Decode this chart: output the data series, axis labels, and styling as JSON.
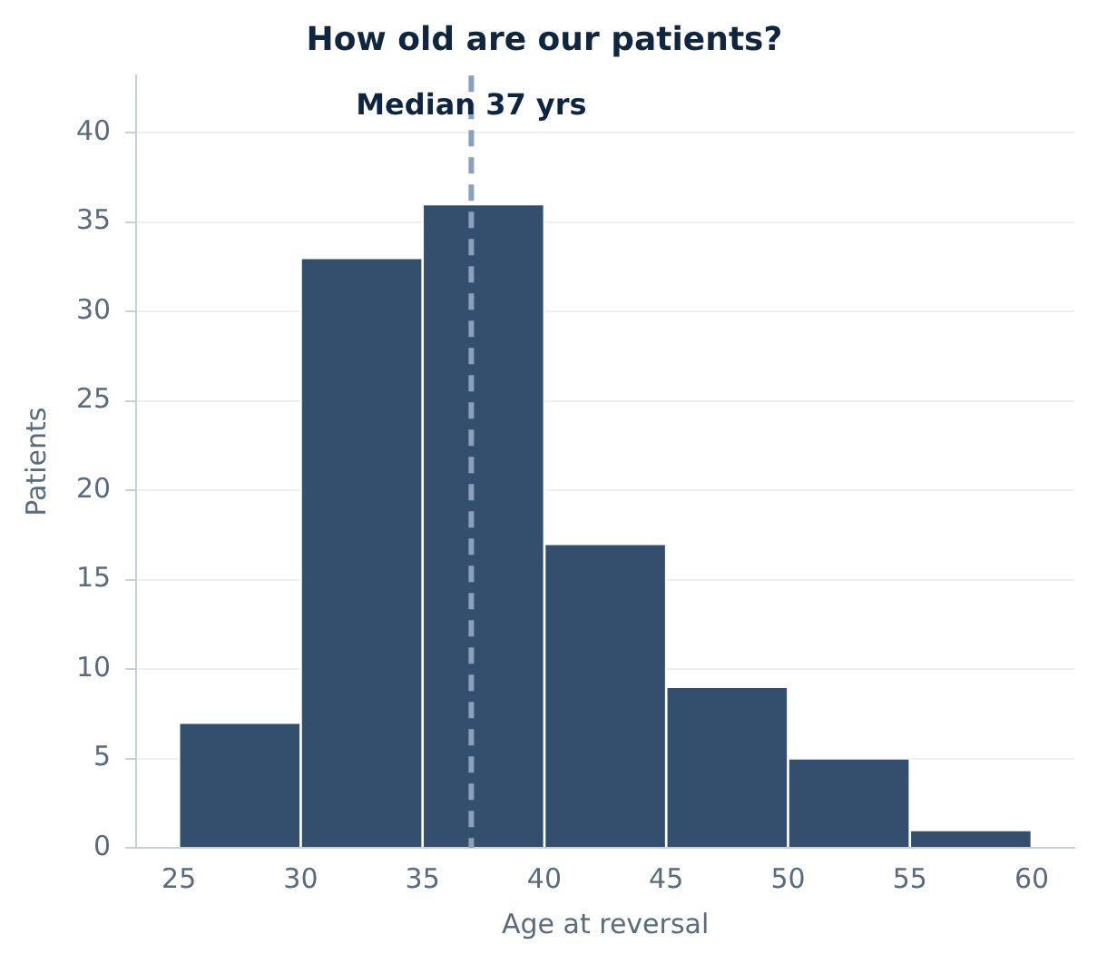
{
  "chart_data": {
    "type": "histogram",
    "title": "How old are our patients?",
    "xlabel": "Age at reversal",
    "ylabel": "Patients",
    "bins": [
      25,
      30,
      35,
      40,
      45,
      50,
      55,
      60
    ],
    "values": [
      7,
      33,
      36,
      17,
      9,
      5,
      1
    ],
    "color": "#344f6e",
    "xlim": [
      23.25,
      61.75
    ],
    "xticks": [
      25,
      30,
      35,
      40,
      45,
      50,
      55,
      60
    ],
    "ylim": [
      0,
      43.2
    ],
    "yticks": [
      0,
      5,
      10,
      15,
      20,
      25,
      30,
      35,
      40
    ],
    "grid": "y",
    "ref_lines": [
      {
        "axis": "x",
        "value": 37,
        "label": "Median 37 yrs",
        "color": "#8aa0bb",
        "line_style": "dashed"
      }
    ]
  }
}
